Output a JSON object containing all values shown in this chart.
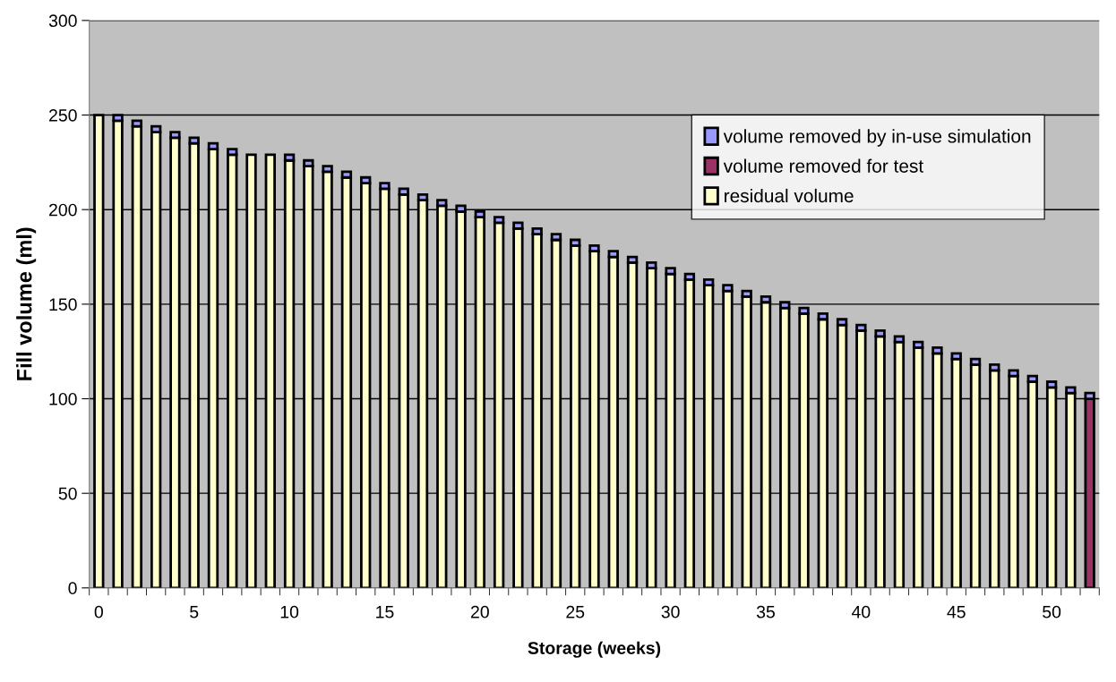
{
  "chart_data": {
    "type": "bar",
    "stacked": true,
    "xlabel": "Storage (weeks)",
    "ylabel": "Fill volume (ml)",
    "categories": [
      "0",
      null,
      null,
      null,
      null,
      "5",
      null,
      null,
      null,
      null,
      "10",
      null,
      null,
      null,
      null,
      "15",
      null,
      null,
      null,
      null,
      "20",
      null,
      null,
      null,
      null,
      "25",
      null,
      null,
      null,
      null,
      "30",
      null,
      null,
      null,
      null,
      "35",
      null,
      null,
      null,
      null,
      "40",
      null,
      null,
      null,
      null,
      "45",
      null,
      null,
      null,
      null,
      "50",
      null,
      null
    ],
    "series": [
      {
        "name": "residual volume",
        "color": "#ffffcc",
        "values": [
          250,
          247,
          244,
          241,
          238,
          235,
          232,
          229,
          229,
          229,
          226,
          223,
          220,
          217,
          214,
          211,
          208,
          205,
          202,
          199,
          196,
          193,
          190,
          187,
          184,
          181,
          178,
          175,
          172,
          169,
          166,
          163,
          160,
          157,
          154,
          151,
          148,
          145,
          142,
          139,
          136,
          133,
          130,
          127,
          124,
          121,
          118,
          115,
          112,
          109,
          106,
          103,
          null
        ]
      },
      {
        "name": "volume removed for test",
        "color": "#993366",
        "values": [
          null,
          null,
          null,
          null,
          null,
          null,
          null,
          null,
          null,
          null,
          null,
          null,
          null,
          null,
          null,
          null,
          null,
          null,
          null,
          null,
          null,
          null,
          null,
          null,
          null,
          null,
          null,
          null,
          null,
          null,
          null,
          null,
          null,
          null,
          null,
          null,
          null,
          null,
          null,
          null,
          null,
          null,
          null,
          null,
          null,
          null,
          null,
          null,
          null,
          null,
          null,
          null,
          100
        ]
      },
      {
        "name": "volume removed by in-use simulation",
        "color": "#9999ff",
        "values": [
          null,
          3,
          3,
          3,
          3,
          3,
          3,
          3,
          null,
          null,
          3,
          3,
          3,
          3,
          3,
          3,
          3,
          3,
          3,
          3,
          3,
          3,
          3,
          3,
          3,
          3,
          3,
          3,
          3,
          3,
          3,
          3,
          3,
          3,
          3,
          3,
          3,
          3,
          3,
          3,
          3,
          3,
          3,
          3,
          3,
          3,
          3,
          3,
          3,
          3,
          3,
          3,
          3
        ]
      }
    ],
    "ylim": [
      0,
      300
    ],
    "yticks": [
      0,
      50,
      100,
      150,
      200,
      250,
      300
    ],
    "grid": "y",
    "legend": "top right"
  }
}
